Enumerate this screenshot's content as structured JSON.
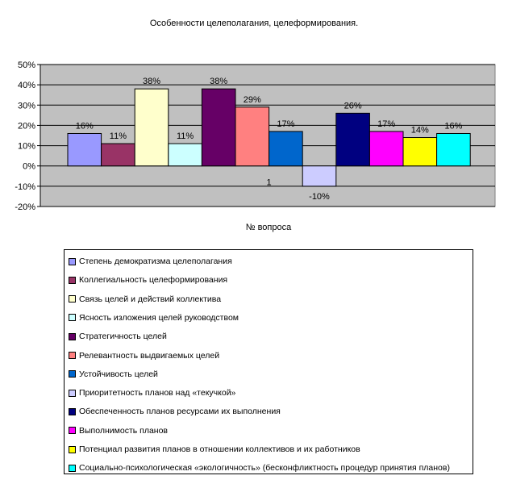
{
  "chart_data": {
    "type": "bar",
    "title": "Особенности целеполагания, целеформирования.",
    "xlabel": "№ вопроса",
    "ylabel": "",
    "categories": [
      "1"
    ],
    "ylim": [
      -0.2,
      0.5
    ],
    "yticks": [
      "50%",
      "40%",
      "30%",
      "20%",
      "10%",
      "0%",
      "-10%",
      "-20%"
    ],
    "grid": true,
    "plot_background": "#c0c0c0",
    "legend_position": "bottom",
    "series": [
      {
        "name": "Степень демократизма целеполагания",
        "value": 0.16,
        "label": "16%",
        "color": "#9999ff"
      },
      {
        "name": "Коллегиальность целеформирования",
        "value": 0.11,
        "label": "11%",
        "color": "#993366"
      },
      {
        "name": "Связь целей и действий коллектива",
        "value": 0.38,
        "label": "38%",
        "color": "#ffffcc"
      },
      {
        "name": "Ясность изложения целей руководством",
        "value": 0.11,
        "label": "11%",
        "color": "#ccffff"
      },
      {
        "name": "Стратегичность целей",
        "value": 0.38,
        "label": "38%",
        "color": "#660066"
      },
      {
        "name": "Релевантность выдвигаемых целей",
        "value": 0.29,
        "label": "29%",
        "color": "#ff8080"
      },
      {
        "name": "Устойчивость целей",
        "value": 0.17,
        "label": "17%",
        "color": "#0066cc"
      },
      {
        "name": "Приоритетность планов над «текучкой»",
        "value": -0.1,
        "label": "-10%",
        "color": "#ccccff"
      },
      {
        "name": "Обеспеченность планов ресурсами их выполнения",
        "value": 0.26,
        "label": "26%",
        "color": "#000080"
      },
      {
        "name": "Выполнимость планов",
        "value": 0.17,
        "label": "17%",
        "color": "#ff00ff"
      },
      {
        "name": "Потенциал развития планов в отношении коллективов и их работников",
        "value": 0.14,
        "label": "14%",
        "color": "#ffff00"
      },
      {
        "name": "Социально-психологическая «экологичность» (бесконфликтность процедур принятия планов)",
        "value": 0.16,
        "label": "16%",
        "color": "#00ffff"
      }
    ]
  }
}
